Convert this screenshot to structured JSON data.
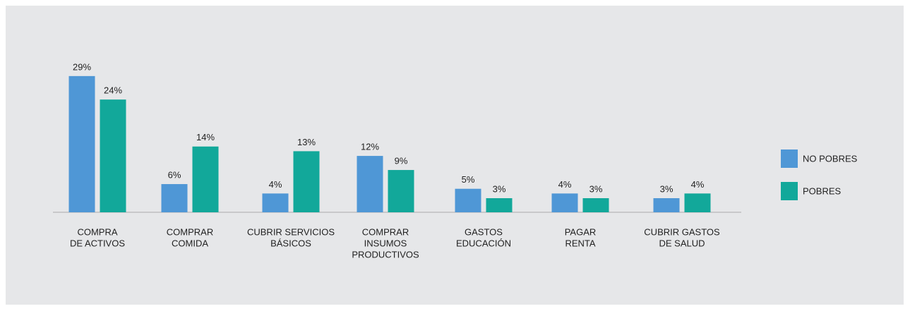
{
  "chart_data": {
    "type": "bar",
    "categories": [
      [
        "COMPRA",
        "DE ACTIVOS"
      ],
      [
        "COMPRAR",
        "COMIDA"
      ],
      [
        "CUBRIR SERVICIOS",
        "BÁSICOS"
      ],
      [
        "COMPRAR",
        "INSUMOS",
        "PRODUCTIVOS"
      ],
      [
        "GASTOS",
        "EDUCACIÓN"
      ],
      [
        "PAGAR",
        "RENTA"
      ],
      [
        "CUBRIR GASTOS",
        "DE SALUD"
      ]
    ],
    "series": [
      {
        "name": "NO POBRES",
        "color": "#4f97d6",
        "values": [
          29,
          6,
          4,
          12,
          5,
          4,
          3
        ],
        "value_labels": [
          "29%",
          "6%",
          "4%",
          "12%",
          "5%",
          "4%",
          "3%"
        ]
      },
      {
        "name": "POBRES",
        "color": "#12a89a",
        "values": [
          24,
          14,
          13,
          9,
          3,
          3,
          4
        ],
        "value_labels": [
          "24%",
          "14%",
          "13%",
          "9%",
          "3%",
          "3%",
          "4%"
        ]
      }
    ],
    "legend": "right"
  }
}
